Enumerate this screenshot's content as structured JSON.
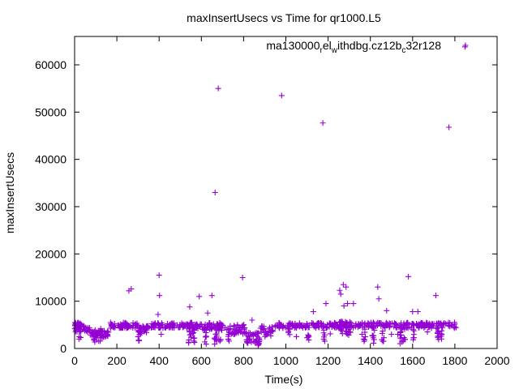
{
  "chart_data": {
    "type": "scatter",
    "title": "maxInsertUsecs vs Time for qr1000.L5",
    "xlabel": "Time(s)",
    "ylabel": "maxInsertUsecs",
    "xlim": [
      0,
      2000
    ],
    "ylim": [
      0,
      66000
    ],
    "x_ticks": [
      0,
      200,
      400,
      600,
      800,
      1000,
      1200,
      1400,
      1600,
      1800,
      2000
    ],
    "y_ticks": [
      0,
      10000,
      20000,
      30000,
      40000,
      50000,
      60000
    ],
    "x_tick_labels": [
      "0",
      "200",
      "400",
      "600",
      "800",
      "1000",
      "1200",
      "1400",
      "1600",
      "1800",
      "2000"
    ],
    "y_tick_labels": [
      "0",
      "10000",
      "20000",
      "30000",
      "40000",
      "50000",
      "60000"
    ],
    "grid": false,
    "legend_position": "top-right",
    "legend": {
      "segments": [
        {
          "text": "ma130000",
          "sub": false
        },
        {
          "text": "r",
          "sub": true
        },
        {
          "text": "el",
          "sub": false
        },
        {
          "text": "w",
          "sub": true
        },
        {
          "text": "ithdbg.cz12b",
          "sub": false
        },
        {
          "text": "c",
          "sub": true
        },
        {
          "text": "32r128",
          "sub": false
        }
      ]
    },
    "series": [
      {
        "color": "#9400d3",
        "marker": "plus",
        "outliers": [
          [
            257,
            12200
          ],
          [
            268,
            12600
          ],
          [
            400,
            15500
          ],
          [
            402,
            11200
          ],
          [
            395,
            7200
          ],
          [
            410,
            3000
          ],
          [
            545,
            8800
          ],
          [
            590,
            11000
          ],
          [
            650,
            11200
          ],
          [
            665,
            33000
          ],
          [
            680,
            55000
          ],
          [
            795,
            15000
          ],
          [
            980,
            53500
          ],
          [
            1175,
            47700
          ],
          [
            1190,
            9500
          ],
          [
            1255,
            12300
          ],
          [
            1272,
            13500
          ],
          [
            1285,
            13000
          ],
          [
            1260,
            11500
          ],
          [
            1275,
            9000
          ],
          [
            1292,
            9500
          ],
          [
            1320,
            9500
          ],
          [
            1435,
            13000
          ],
          [
            1440,
            10500
          ],
          [
            1477,
            8000
          ],
          [
            1580,
            15200
          ],
          [
            1600,
            7800
          ],
          [
            1625,
            7800
          ],
          [
            1710,
            11200
          ],
          [
            1772,
            46800
          ],
          [
            1848,
            63800
          ],
          [
            630,
            7500
          ],
          [
            730,
            3000
          ],
          [
            760,
            3200
          ],
          [
            1130,
            7800
          ],
          [
            1210,
            3100
          ],
          [
            1360,
            3000
          ],
          [
            1500,
            3000
          ],
          [
            1530,
            3000
          ],
          [
            1670,
            3500
          ],
          [
            150,
            3000
          ],
          [
            300,
            2500
          ],
          [
            840,
            6000
          ],
          [
            1050,
            2500
          ]
        ],
        "bands": [
          {
            "x0": 0,
            "x1": 30,
            "y0": 3500,
            "y1": 5500,
            "n": 24
          },
          {
            "x0": 10,
            "x1": 40,
            "y0": 4500,
            "y1": 5500,
            "n": 12
          },
          {
            "x0": 40,
            "x1": 75,
            "y0": 3500,
            "y1": 4800,
            "n": 18
          },
          {
            "x0": 75,
            "x1": 165,
            "y0": 2200,
            "y1": 3800,
            "n": 40
          },
          {
            "x0": 165,
            "x1": 250,
            "y0": 4300,
            "y1": 5500,
            "n": 40
          },
          {
            "x0": 250,
            "x1": 300,
            "y0": 4200,
            "y1": 5400,
            "n": 22
          },
          {
            "x0": 300,
            "x1": 345,
            "y0": 3200,
            "y1": 4800,
            "n": 22
          },
          {
            "x0": 345,
            "x1": 530,
            "y0": 4300,
            "y1": 5400,
            "n": 70
          },
          {
            "x0": 530,
            "x1": 600,
            "y0": 4200,
            "y1": 5500,
            "n": 30
          },
          {
            "x0": 600,
            "x1": 720,
            "y0": 3800,
            "y1": 5500,
            "n": 50
          },
          {
            "x0": 720,
            "x1": 810,
            "y0": 3000,
            "y1": 5200,
            "n": 40
          },
          {
            "x0": 810,
            "x1": 880,
            "y0": 1000,
            "y1": 3500,
            "n": 34
          },
          {
            "x0": 880,
            "x1": 950,
            "y0": 2500,
            "y1": 4800,
            "n": 30
          },
          {
            "x0": 950,
            "x1": 1230,
            "y0": 4300,
            "y1": 5400,
            "n": 100
          },
          {
            "x0": 1230,
            "x1": 1330,
            "y0": 4200,
            "y1": 5800,
            "n": 45
          },
          {
            "x0": 1330,
            "x1": 1810,
            "y0": 4300,
            "y1": 5500,
            "n": 160
          }
        ],
        "drops": [
          {
            "x": 25,
            "y0": 1500,
            "y1": 4500,
            "n": 6
          },
          {
            "x": 95,
            "y0": 1200,
            "y1": 4000,
            "n": 8
          },
          {
            "x": 120,
            "y0": 1500,
            "y1": 4200,
            "n": 6
          },
          {
            "x": 305,
            "y0": 1300,
            "y1": 4500,
            "n": 8
          },
          {
            "x": 545,
            "y0": 800,
            "y1": 4500,
            "n": 10
          },
          {
            "x": 563,
            "y0": 1000,
            "y1": 4500,
            "n": 8
          },
          {
            "x": 620,
            "y0": 800,
            "y1": 4500,
            "n": 8
          },
          {
            "x": 668,
            "y0": 500,
            "y1": 4500,
            "n": 10
          },
          {
            "x": 685,
            "y0": 1500,
            "y1": 4500,
            "n": 6
          },
          {
            "x": 732,
            "y0": 1500,
            "y1": 4200,
            "n": 6
          },
          {
            "x": 872,
            "y0": 600,
            "y1": 2500,
            "n": 8
          },
          {
            "x": 1015,
            "y0": 1500,
            "y1": 4500,
            "n": 6
          },
          {
            "x": 1105,
            "y0": 1500,
            "y1": 4500,
            "n": 6
          },
          {
            "x": 1180,
            "y0": 1500,
            "y1": 4500,
            "n": 6
          },
          {
            "x": 1262,
            "y0": 2500,
            "y1": 6000,
            "n": 8
          },
          {
            "x": 1286,
            "y0": 2500,
            "y1": 6000,
            "n": 8
          },
          {
            "x": 1300,
            "y0": 1500,
            "y1": 4500,
            "n": 6
          },
          {
            "x": 1370,
            "y0": 1500,
            "y1": 4500,
            "n": 6
          },
          {
            "x": 1415,
            "y0": 1000,
            "y1": 4500,
            "n": 8
          },
          {
            "x": 1460,
            "y0": 1500,
            "y1": 4500,
            "n": 6
          },
          {
            "x": 1545,
            "y0": 1000,
            "y1": 4500,
            "n": 10
          },
          {
            "x": 1560,
            "y0": 1500,
            "y1": 4500,
            "n": 6
          },
          {
            "x": 1605,
            "y0": 1500,
            "y1": 4500,
            "n": 6
          },
          {
            "x": 1718,
            "y0": 600,
            "y1": 4500,
            "n": 10
          },
          {
            "x": 1735,
            "y0": 1500,
            "y1": 4500,
            "n": 6
          }
        ]
      }
    ]
  }
}
